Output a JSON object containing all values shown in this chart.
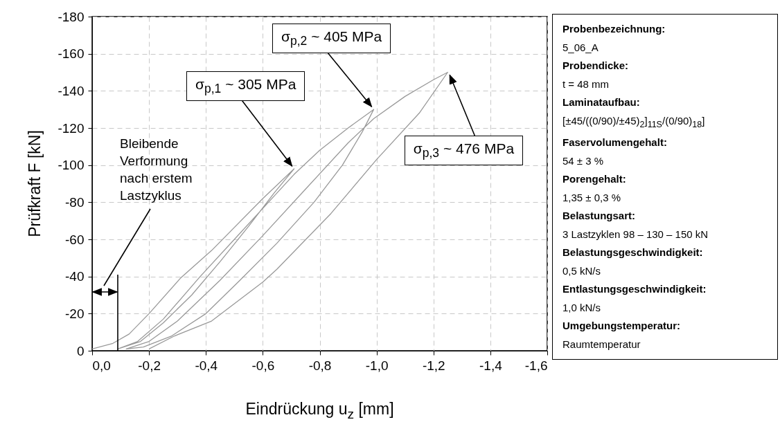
{
  "chart_data": {
    "type": "line",
    "xlabel": "Eindrückung u$_{z}$ [mm]",
    "ylabel": "Prüfkraft F [kN]",
    "series": [
      {
        "color": "#999999",
        "x": [
          0,
          -0.073,
          -0.13,
          -0.2,
          -0.31,
          -0.42,
          -0.6,
          -0.71,
          -0.64,
          -0.55,
          -0.45,
          -0.35,
          -0.25,
          -0.17,
          -0.09,
          -0.16,
          -0.25,
          -0.38,
          -0.5,
          -0.65,
          -0.71,
          -0.8,
          -0.9,
          -0.99,
          -0.95,
          -0.88,
          -0.78,
          -0.65,
          -0.52,
          -0.4,
          -0.28,
          -0.18,
          -0.12,
          -0.2,
          -0.3,
          -0.45,
          -0.6,
          -0.75,
          -0.9,
          -0.99,
          -1.1,
          -1.2,
          -1.25,
          -1.15,
          -1.0,
          -0.84,
          -0.65,
          -0.6,
          -0.42,
          -0.29,
          -0.2
        ],
        "values": [
          -1,
          -4,
          -9,
          -20,
          -39,
          -54,
          -82,
          -98,
          -85,
          -67,
          -48,
          -30,
          -15,
          -5,
          -1,
          -5,
          -17,
          -40,
          -60,
          -85,
          -95,
          -108,
          -120,
          -130,
          -118,
          -100,
          -80,
          -58,
          -38,
          -20,
          -8,
          -2,
          -1,
          -5,
          -16,
          -38,
          -62,
          -87,
          -112,
          -125,
          -137,
          -146,
          -150,
          -128,
          -103,
          -74,
          -44,
          -37,
          -16,
          -8,
          -1
        ]
      }
    ],
    "xlim": [
      0,
      -1.6
    ],
    "ylim": [
      0,
      -180
    ],
    "xticks": [
      {
        "value": 0,
        "label": "0,0"
      },
      {
        "value": -0.2,
        "label": "-0,2"
      },
      {
        "value": -0.4,
        "label": "-0,4"
      },
      {
        "value": -0.6,
        "label": "-0,6"
      },
      {
        "value": -0.8,
        "label": "-0,8"
      },
      {
        "value": -1.0,
        "label": "-1,0"
      },
      {
        "value": -1.2,
        "label": "-1,2"
      },
      {
        "value": -1.4,
        "label": "-1,4"
      },
      {
        "value": -1.6,
        "label": "-1,6"
      }
    ],
    "yticks": [
      0,
      -20,
      -40,
      -60,
      -80,
      -100,
      -120,
      -140,
      -160,
      -180
    ],
    "grid": true,
    "annotations": [
      {
        "text": "σ$_{p,1}$ ~ 305 MPa",
        "x": -0.71,
        "y": -98
      },
      {
        "text": "σ$_{p,2}$ ~ 405 MPa",
        "x": -0.99,
        "y": -130
      },
      {
        "text": "σ$_{p,3}$ ~ 476 MPa",
        "x": -1.25,
        "y": -150
      },
      "Bleibende Verformung nach erstem Lastzyklus",
      "Probenbezeichnung:",
      "5_06_A",
      "Probendicke:",
      "t = 48 mm",
      "Laminataufbau:",
      "[±45/((0/90)/±45)$_{2}$]$_{11S}$/(0/90)$_{18}$]",
      "Faservolumengehalt:",
      "54 ± 3 %",
      "Porengehalt:",
      "1,35 ± 0,3 %",
      "Belastungsart:",
      "3 Lastzyklen 98 – 130 – 150 kN",
      "Belastungsgeschwindigkeit:",
      "0,5 kN/s",
      "Entlastungsgeschwindigkeit:",
      "1,0 kN/s",
      "Umgebungstemperatur:",
      "Raumtemperatur"
    ]
  }
}
